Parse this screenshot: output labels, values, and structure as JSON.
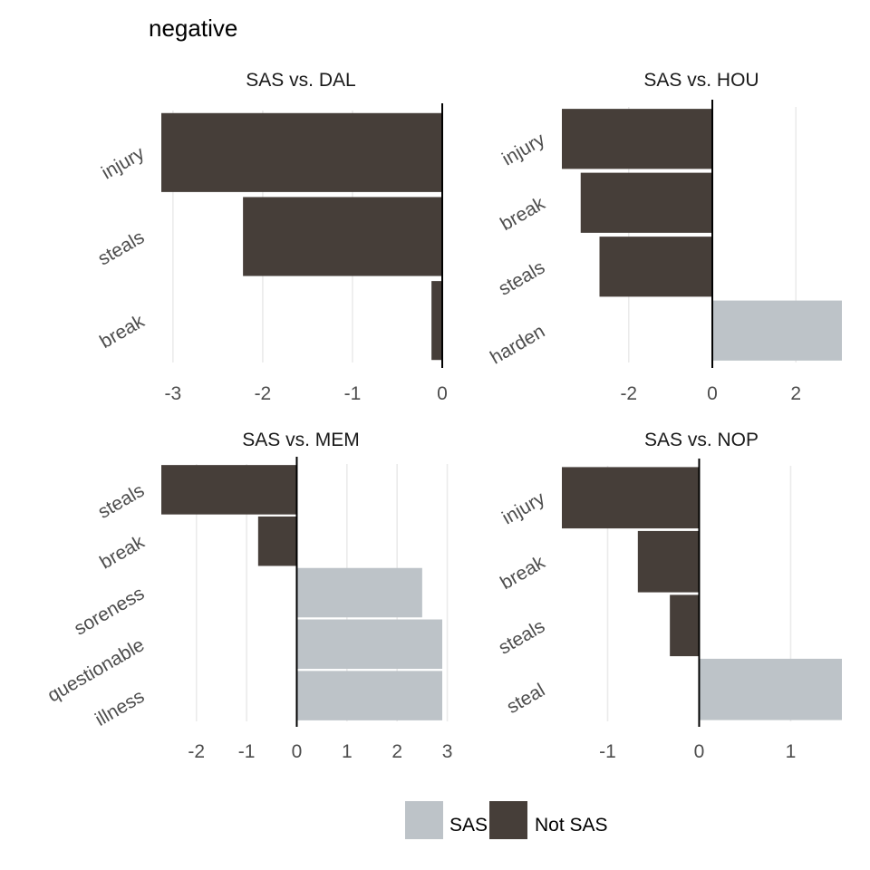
{
  "figure": {
    "title": "negative",
    "colors": {
      "SAS": "#bdc3c8",
      "Not SAS": "#463e39"
    }
  },
  "legend": {
    "position": "bottom",
    "items": [
      {
        "label": "SAS",
        "color": "#bdc3c8"
      },
      {
        "label": "Not SAS",
        "color": "#463e39"
      }
    ]
  },
  "chart_data": [
    {
      "type": "bar",
      "orientation": "horizontal",
      "title": "SAS vs. DAL",
      "categories": [
        "injury",
        "steals",
        "break"
      ],
      "values": [
        -3.13,
        -2.22,
        -0.12
      ],
      "groups": [
        "Not SAS",
        "Not SAS",
        "Not SAS"
      ],
      "xlim": [
        -3.13,
        0
      ],
      "xticks": [
        -3,
        -2,
        -1,
        0
      ],
      "grid": true
    },
    {
      "type": "bar",
      "orientation": "horizontal",
      "title": "SAS vs. HOU",
      "categories": [
        "injury",
        "break",
        "steals",
        "harden"
      ],
      "values": [
        -3.6,
        -3.15,
        -2.7,
        3.1
      ],
      "groups": [
        "Not SAS",
        "Not SAS",
        "Not SAS",
        "SAS"
      ],
      "xlim": [
        -3.6,
        3.1
      ],
      "xticks": [
        -2,
        0,
        2
      ],
      "grid": true
    },
    {
      "type": "bar",
      "orientation": "horizontal",
      "title": "SAS vs. MEM",
      "categories": [
        "steals",
        "break",
        "soreness",
        "questionable",
        "illness"
      ],
      "values": [
        -2.7,
        -0.77,
        2.5,
        2.9,
        2.9
      ],
      "groups": [
        "Not SAS",
        "Not SAS",
        "SAS",
        "SAS",
        "SAS"
      ],
      "xlim": [
        -2.7,
        2.9
      ],
      "xticks": [
        -2,
        -1,
        0,
        1,
        2,
        3
      ],
      "grid": true
    },
    {
      "type": "bar",
      "orientation": "horizontal",
      "title": "SAS vs. NOP",
      "categories": [
        "injury",
        "break",
        "steals",
        "steal"
      ],
      "values": [
        -1.5,
        -0.67,
        -0.32,
        1.56
      ],
      "groups": [
        "Not SAS",
        "Not SAS",
        "Not SAS",
        "SAS"
      ],
      "xlim": [
        -1.5,
        1.56
      ],
      "xticks": [
        -1,
        0,
        1
      ],
      "grid": true
    }
  ]
}
